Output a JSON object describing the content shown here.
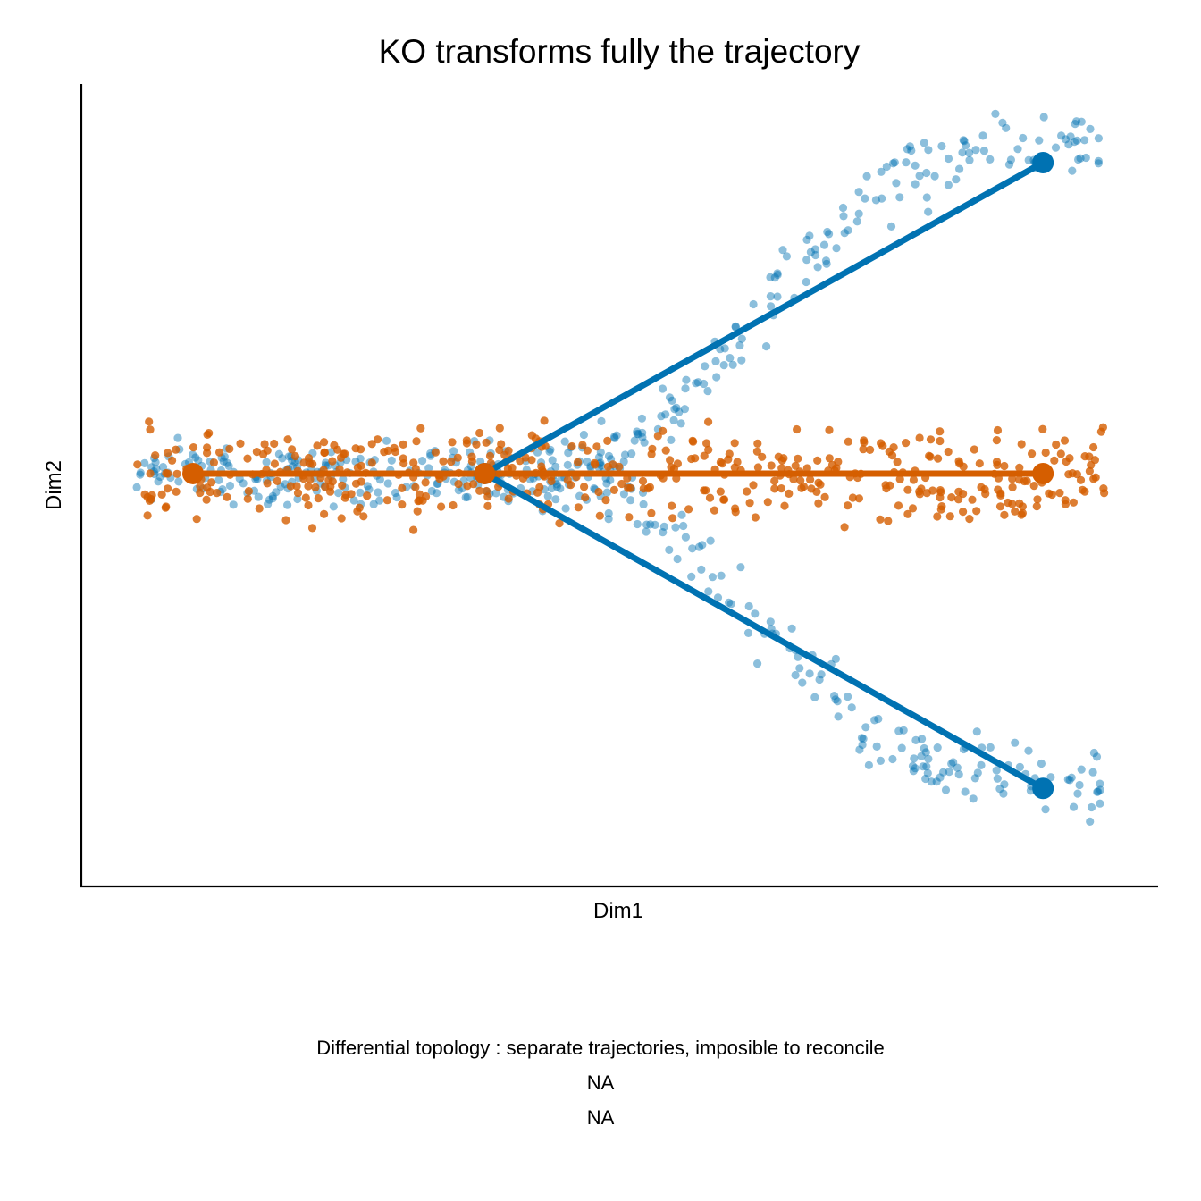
{
  "chart_data": {
    "type": "scatter",
    "title": "KO transforms fully the trajectory",
    "xlabel": "Dim1",
    "ylabel": "Dim2",
    "xlim": [
      0,
      1
    ],
    "ylim": [
      -0.53,
      0.5
    ],
    "grid": false,
    "legend": "none",
    "axis_ticks_shown": false,
    "colors": {
      "blue": "#0072B2",
      "orange": "#D55E00"
    },
    "trajectories": [
      {
        "color": "#0072B2",
        "edges": [
          {
            "from": [
              0.374,
              0.0
            ],
            "to": [
              0.893,
              0.4
            ]
          },
          {
            "from": [
              0.374,
              0.0
            ],
            "to": [
              0.893,
              -0.405
            ]
          }
        ],
        "milestones": [
          [
            0.374,
            0.0
          ],
          [
            0.893,
            0.4
          ],
          [
            0.893,
            -0.405
          ]
        ]
      },
      {
        "color": "#D55E00",
        "edges": [
          {
            "from": [
              0.103,
              0.0
            ],
            "to": [
              0.374,
              0.0
            ]
          },
          {
            "from": [
              0.374,
              0.0
            ],
            "to": [
              0.893,
              0.0
            ]
          }
        ],
        "milestones": [
          [
            0.103,
            0.0
          ],
          [
            0.374,
            0.0
          ],
          [
            0.893,
            0.0
          ]
        ]
      }
    ],
    "point_clouds": [
      {
        "color": "#0072B2",
        "opacity": 0.45,
        "segments": [
          {
            "x_range": [
              0.05,
              0.38
            ],
            "y_center": 0.0,
            "y_spread": 0.06,
            "n": 170
          },
          {
            "x_range": [
              0.38,
              0.95
            ],
            "shape": "upper-branch",
            "y_range": [
              0.0,
              0.43
            ],
            "y_spread": 0.045,
            "n": 190
          },
          {
            "x_range": [
              0.38,
              0.95
            ],
            "shape": "lower-branch",
            "y_range": [
              0.0,
              -0.4
            ],
            "y_spread": 0.045,
            "n": 190
          }
        ]
      },
      {
        "color": "#D55E00",
        "opacity": 0.8,
        "segments": [
          {
            "x_range": [
              0.05,
              0.95
            ],
            "y_center": 0.0,
            "y_spread": 0.085,
            "n": 470
          }
        ]
      }
    ]
  },
  "caption": {
    "line1": "Differential topology : separate trajectories, imposible to reconcile",
    "line2": "NA",
    "line3": "NA"
  }
}
